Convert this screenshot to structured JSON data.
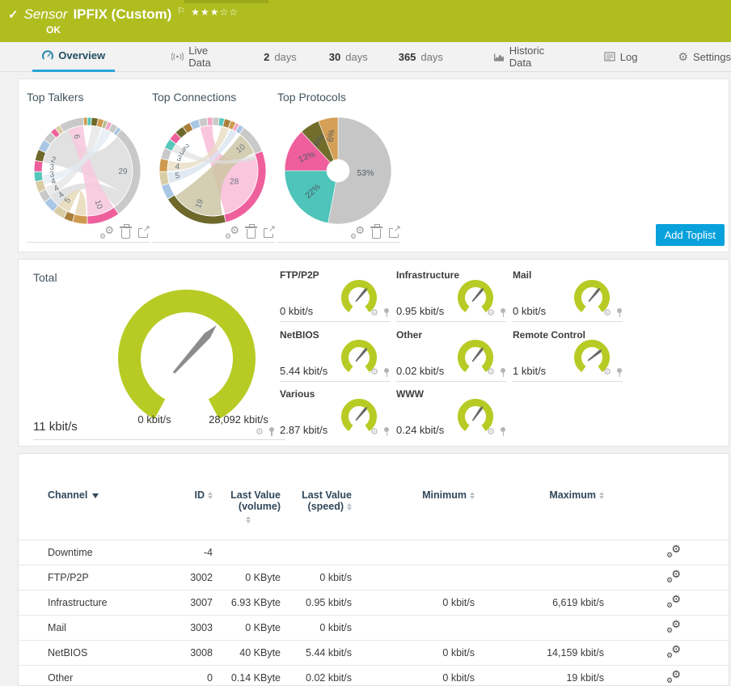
{
  "colors": {
    "header_green": "#b0bd1f",
    "gauge_green": "#b7cb24",
    "accent_blue": "#09a1dc",
    "tab_underline": "#2aa4da",
    "table_header_navy": "#31475a"
  },
  "header": {
    "kind": "Sensor",
    "name": "IPFIX (Custom)",
    "status": "OK",
    "stars_filled": 3,
    "stars_total": 5
  },
  "tabs": {
    "overview": "Overview",
    "live_data": "Live Data",
    "d2_num": "2",
    "d2_word": "days",
    "d30_num": "30",
    "d30_word": "days",
    "d365_num": "365",
    "d365_word": "days",
    "historic": "Historic Data",
    "log": "Log",
    "settings": "Settings"
  },
  "toplists": {
    "add_button": "Add Toplist"
  },
  "table": {
    "columns": {
      "channel": "Channel",
      "id": "ID",
      "lastvol1": "Last Value",
      "lastvol2": "(volume)",
      "lastspd1": "Last Value",
      "lastspd2": "(speed)",
      "min": "Minimum",
      "max": "Maximum"
    },
    "rows": [
      [
        "Downtime",
        "-4",
        "",
        "",
        "",
        ""
      ],
      [
        "FTP/P2P",
        "3002",
        "0 KByte",
        "0 kbit/s",
        "",
        ""
      ],
      [
        "Infrastructure",
        "3007",
        "6.93 KByte",
        "0.95 kbit/s",
        "0 kbit/s",
        "6,619 kbit/s"
      ],
      [
        "Mail",
        "3003",
        "0 KByte",
        "0 kbit/s",
        "",
        ""
      ],
      [
        "NetBIOS",
        "3008",
        "40 KByte",
        "5.44 kbit/s",
        "0 kbit/s",
        "14,159 kbit/s"
      ],
      [
        "Other",
        "0",
        "0.14 KByte",
        "0.02 kbit/s",
        "0 kbit/s",
        "19 kbit/s"
      ]
    ]
  },
  "chart_data": [
    {
      "type": "chord",
      "title": "Top Talkers",
      "palette": {
        "gray": "#c9c9c9",
        "pinkBright": "#ee5f9c",
        "teal": "#57c6bb",
        "olive": "#6e682b",
        "tan": "#cf9a4e",
        "brown": "#aa7f3c",
        "blue": "#a9c7e4",
        "beige": "#d9cda6",
        "pink": "#f2a6c6",
        "sage": "#b5bd90"
      },
      "segments": [
        {
          "f": 0.013,
          "c": "teal"
        },
        {
          "f": 0.02,
          "c": "olive"
        },
        {
          "f": 0.018,
          "c": "tan"
        },
        {
          "f": 0.012,
          "c": "sage"
        },
        {
          "f": 0.014,
          "c": "pink"
        },
        {
          "f": 0.02,
          "c": "gray"
        },
        {
          "f": 0.013,
          "c": "blue"
        },
        {
          "f": 0.29,
          "c": "gray",
          "l": "29"
        },
        {
          "f": 0.1,
          "c": "pinkBright",
          "l": "10"
        },
        {
          "f": 0.045,
          "c": "tan"
        },
        {
          "f": 0.028,
          "c": "brown"
        },
        {
          "f": 0.038,
          "c": "beige",
          "l": "5"
        },
        {
          "f": 0.038,
          "c": "blue",
          "l": "4"
        },
        {
          "f": 0.034,
          "c": "gray",
          "l": "4"
        },
        {
          "f": 0.034,
          "c": "beige",
          "l": "4"
        },
        {
          "f": 0.03,
          "c": "teal",
          "l": "3"
        },
        {
          "f": 0.034,
          "c": "pinkBright",
          "l": "3"
        },
        {
          "f": 0.034,
          "c": "olive",
          "l": "2"
        },
        {
          "f": 0.034,
          "c": "blue"
        },
        {
          "f": 0.03,
          "c": "gray"
        },
        {
          "f": 0.018,
          "c": "pinkBright"
        },
        {
          "f": 0.016,
          "c": "beige"
        },
        {
          "f": 0.075,
          "c": "gray",
          "l": "6"
        },
        {
          "f": 0.012,
          "c": "tan"
        }
      ],
      "chords": [
        {
          "a": [
            0.115,
            0.34
          ],
          "b": [
            0.78,
            0.935
          ],
          "color": "#dcdcdc",
          "o": 0.85
        },
        {
          "a": [
            0.34,
            0.395
          ],
          "b": [
            0.6,
            0.655
          ],
          "color": "#d6d6d6",
          "o": 0.7
        },
        {
          "a": [
            0.4,
            0.5
          ],
          "b": [
            0.93,
            0.985
          ],
          "color": "#f7cade",
          "o": 0.9
        },
        {
          "a": [
            0.505,
            0.545
          ],
          "b": [
            0.565,
            0.61
          ],
          "color": "#e7d9b8",
          "o": 0.85
        },
        {
          "a": [
            0.65,
            0.69
          ],
          "b": [
            0.015,
            0.05
          ],
          "color": "#e3e3e3",
          "o": 0.7
        },
        {
          "a": [
            0.7,
            0.735
          ],
          "b": [
            0.055,
            0.09
          ],
          "color": "#dfe9f2",
          "o": 0.7
        }
      ]
    },
    {
      "type": "chord",
      "title": "Top Connections",
      "palette": {
        "gray": "#c9c9c9",
        "pinkBright": "#ee5f9c",
        "teal": "#57c6bb",
        "olive": "#6e682b",
        "tan": "#cf9a4e",
        "brown": "#aa7f3c",
        "blue": "#a9c7e4",
        "beige": "#d9cda6",
        "pink": "#f2a6c6",
        "sage": "#b5bd90"
      },
      "segments": [
        {
          "f": 0.02,
          "c": "gray"
        },
        {
          "f": 0.016,
          "c": "teal"
        },
        {
          "f": 0.02,
          "c": "brown"
        },
        {
          "f": 0.016,
          "c": "tan"
        },
        {
          "f": 0.012,
          "c": "pink"
        },
        {
          "f": 0.016,
          "c": "blue"
        },
        {
          "f": 0.09,
          "c": "gray",
          "l": "10"
        },
        {
          "f": 0.27,
          "c": "pinkBright",
          "l": "28",
          "lr": 30
        },
        {
          "f": 0.2,
          "c": "olive",
          "l": "19"
        },
        {
          "f": 0.045,
          "c": "blue"
        },
        {
          "f": 0.042,
          "c": "beige",
          "l": "5"
        },
        {
          "f": 0.04,
          "c": "tan",
          "l": "4"
        },
        {
          "f": 0.034,
          "c": "gray",
          "l": "3"
        },
        {
          "f": 0.03,
          "c": "teal",
          "l": "3"
        },
        {
          "f": 0.026,
          "c": "pinkBright",
          "l": "2"
        },
        {
          "f": 0.028,
          "c": "olive"
        },
        {
          "f": 0.024,
          "c": "brown"
        },
        {
          "f": 0.028,
          "c": "blue"
        },
        {
          "f": 0.026,
          "c": "gray"
        },
        {
          "f": 0.017,
          "c": "pink"
        }
      ],
      "chords": [
        {
          "a": [
            0.2,
            0.455
          ],
          "b": [
            0.955,
            0.999
          ],
          "color": "#f8c0da",
          "o": 0.9
        },
        {
          "a": [
            0.465,
            0.655
          ],
          "b": [
            0.105,
            0.185
          ],
          "color": "#cdc6a5",
          "o": 0.85
        },
        {
          "a": [
            0.705,
            0.745
          ],
          "b": [
            0.065,
            0.09
          ],
          "color": "#d8e4ef",
          "o": 0.8
        },
        {
          "a": [
            0.75,
            0.785
          ],
          "b": [
            0.03,
            0.06
          ],
          "color": "#e7ddc2",
          "o": 0.8
        },
        {
          "a": [
            0.82,
            0.85
          ],
          "b": [
            0.19,
            0.21
          ],
          "color": "#e0e0e0",
          "o": 0.7
        }
      ]
    },
    {
      "type": "pie",
      "title": "Top Protocols",
      "hole_r": 14,
      "slices": [
        {
          "pct": 53,
          "color": "#c6c6c6",
          "label": "53%",
          "lr": 34,
          "rot": 0
        },
        {
          "pct": 22,
          "color": "#4ec4ba",
          "label": "22%",
          "lr": 40,
          "rot": -42
        },
        {
          "pct": 13,
          "color": "#ee5f9c",
          "label": "13%",
          "lr": 42,
          "rot": -22
        },
        {
          "pct": 6,
          "color": "#736d2c",
          "label": "6%",
          "lr": 44,
          "rot": -58
        },
        {
          "pct": 6,
          "color": "#d5a055",
          "label": "6%",
          "lr": 44,
          "rot": -82
        }
      ]
    },
    {
      "type": "gauge",
      "name": "Total",
      "value_text": "11 kbit/s",
      "min_label": "0 kbit/s",
      "max_label": "28,092 kbit/s",
      "needle_deg": 42,
      "value_kbit": 11,
      "max_kbit": 28092
    },
    {
      "type": "gauge",
      "name": "FTP/P2P",
      "value_text": "0 kbit/s",
      "needle_deg": 40
    },
    {
      "type": "gauge",
      "name": "Infrastructure",
      "value_text": "0.95 kbit/s",
      "needle_deg": 40
    },
    {
      "type": "gauge",
      "name": "Mail",
      "value_text": "0 kbit/s",
      "needle_deg": 40
    },
    {
      "type": "gauge",
      "name": "NetBIOS",
      "value_text": "5.44 kbit/s",
      "needle_deg": 40
    },
    {
      "type": "gauge",
      "name": "Other",
      "value_text": "0.02 kbit/s",
      "needle_deg": 38
    },
    {
      "type": "gauge",
      "name": "Remote Control",
      "value_text": "1 kbit/s",
      "needle_deg": 52
    },
    {
      "type": "gauge",
      "name": "Various",
      "value_text": "2.87 kbit/s",
      "needle_deg": 40
    },
    {
      "type": "gauge",
      "name": "WWW",
      "value_text": "0.24 kbit/s",
      "needle_deg": 35
    }
  ]
}
